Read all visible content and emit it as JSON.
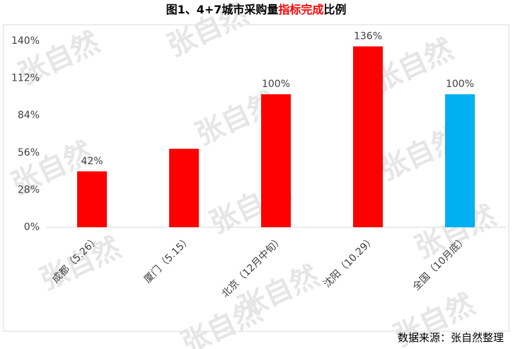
{
  "chart_data": {
    "type": "bar",
    "title_parts": [
      {
        "text": "图1、4+7城市采购量",
        "color": "#000000"
      },
      {
        "text": "指标完成",
        "color": "#ff0000"
      },
      {
        "text": "比例",
        "color": "#000000"
      }
    ],
    "categories": [
      "成都（5.26）",
      "厦门（5.15）",
      "北京（12月中旬）",
      "沈阳（10.29）",
      "全国（10月底）"
    ],
    "values": [
      42,
      59,
      100,
      136,
      100
    ],
    "value_labels": [
      "42%",
      null,
      "100%",
      "136%",
      "100%"
    ],
    "colors": [
      "#ff0000",
      "#ff0000",
      "#ff0000",
      "#ff0000",
      "#00b0f0"
    ],
    "ylim": [
      0,
      140
    ],
    "yticks": [
      {
        "value": 0,
        "label": "0%"
      },
      {
        "value": 28,
        "label": "28%"
      },
      {
        "value": 56,
        "label": "56%"
      },
      {
        "value": 84,
        "label": "84%"
      },
      {
        "value": 112,
        "label": "112%"
      },
      {
        "value": 140,
        "label": "140%"
      }
    ],
    "grid": false,
    "watermark": "张自然",
    "source": "数据来源：张自然整理"
  }
}
